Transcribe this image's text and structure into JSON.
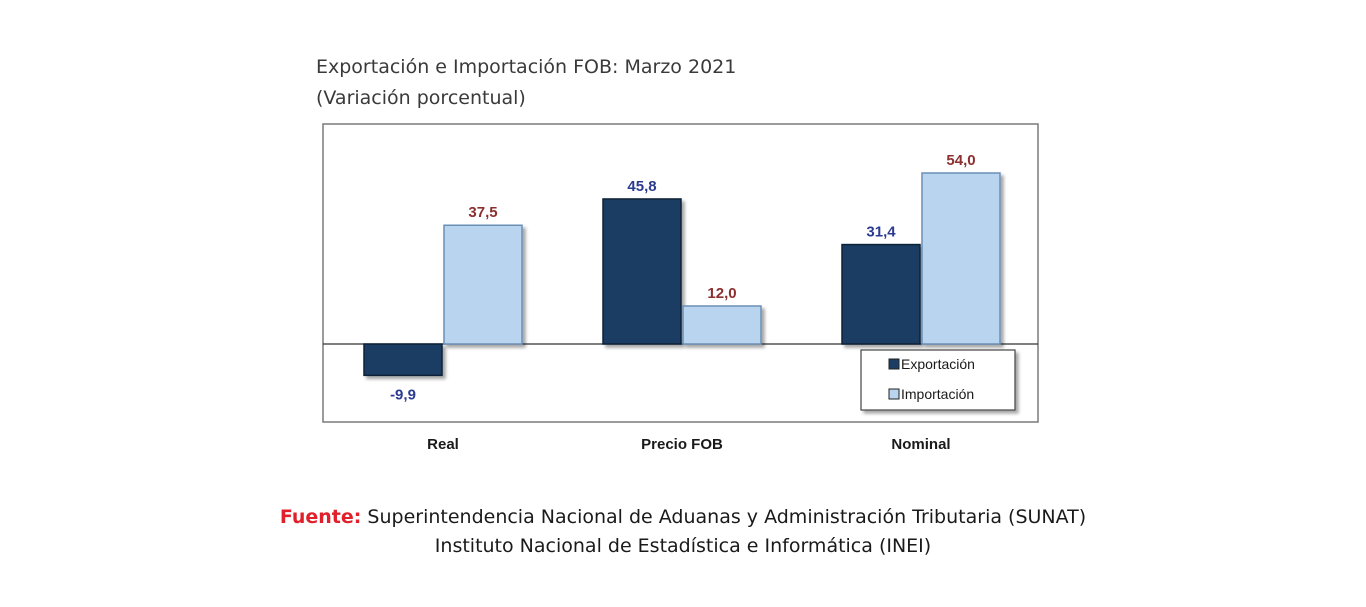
{
  "chart_data": {
    "type": "bar",
    "title": "Exportación e Importación FOB: Marzo 2021",
    "subtitle": "(Variación porcentual)",
    "categories": [
      "Real",
      "Precio FOB",
      "Nominal"
    ],
    "series": [
      {
        "name": "Exportación",
        "values": [
          -9.9,
          45.8,
          31.4
        ],
        "labels": [
          "-9,9",
          "45,8",
          "31,4"
        ],
        "color": "#1b3d63",
        "label_color": "#2b3b8f"
      },
      {
        "name": "Importación",
        "values": [
          37.5,
          12.0,
          54.0
        ],
        "labels": [
          "37,5",
          "12,0",
          "54,0"
        ],
        "color": "#b8d4ee",
        "label_color": "#8b2f2f"
      }
    ],
    "ylim": [
      -18,
      60
    ],
    "grid": false,
    "legend_position": "bottom-right"
  },
  "source": {
    "label": "Fuente:",
    "line1": "Superintendencia Nacional de Aduanas y Administración Tributaria (SUNAT)",
    "line2": "Instituto Nacional de Estadística e Informática (INEI)"
  }
}
